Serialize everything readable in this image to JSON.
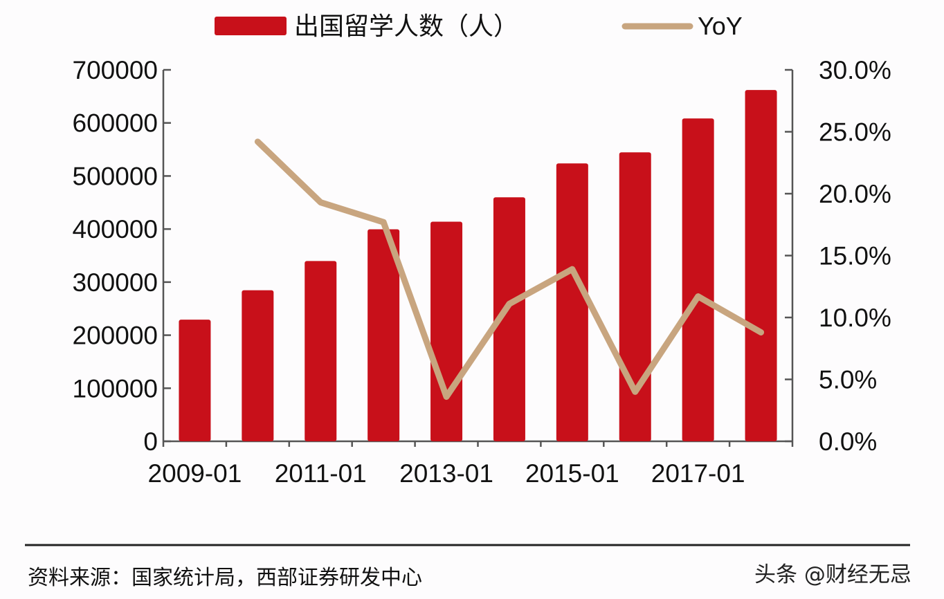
{
  "chart_data": {
    "type": "bar+line",
    "categories": [
      "2009-01",
      "2010-01",
      "2011-01",
      "2012-01",
      "2013-01",
      "2014-01",
      "2015-01",
      "2016-01",
      "2017-01",
      "2018-01"
    ],
    "x_tick_labels": [
      "2009-01",
      "",
      "2011-01",
      "",
      "2013-01",
      "",
      "2015-01",
      "",
      "2017-01",
      ""
    ],
    "series": [
      {
        "name": "出国留学人数（人）",
        "type": "bar",
        "axis": "left",
        "color": "#c8101a",
        "values": [
          229300,
          284700,
          339700,
          399600,
          413900,
          459800,
          523700,
          544500,
          608400,
          662100
        ]
      },
      {
        "name": "YoY",
        "type": "line",
        "axis": "right",
        "color": "#c8a57f",
        "values": [
          null,
          24.2,
          19.3,
          17.7,
          3.6,
          11.1,
          13.9,
          4.0,
          11.7,
          8.8
        ]
      }
    ],
    "left_axis": {
      "ylim": [
        0,
        700000
      ],
      "ticks": [
        "0",
        "100000",
        "200000",
        "300000",
        "400000",
        "500000",
        "600000",
        "700000"
      ]
    },
    "right_axis": {
      "ylim": [
        0,
        30
      ],
      "unit": "%",
      "ticks": [
        "0.0%",
        "5.0%",
        "10.0%",
        "15.0%",
        "20.0%",
        "25.0%",
        "30.0%"
      ]
    },
    "legend_position": "top",
    "grid": false
  },
  "footer": {
    "source": "资料来源：国家统计局，西部证券研发中心",
    "watermark": "头条 @财经无忌"
  }
}
